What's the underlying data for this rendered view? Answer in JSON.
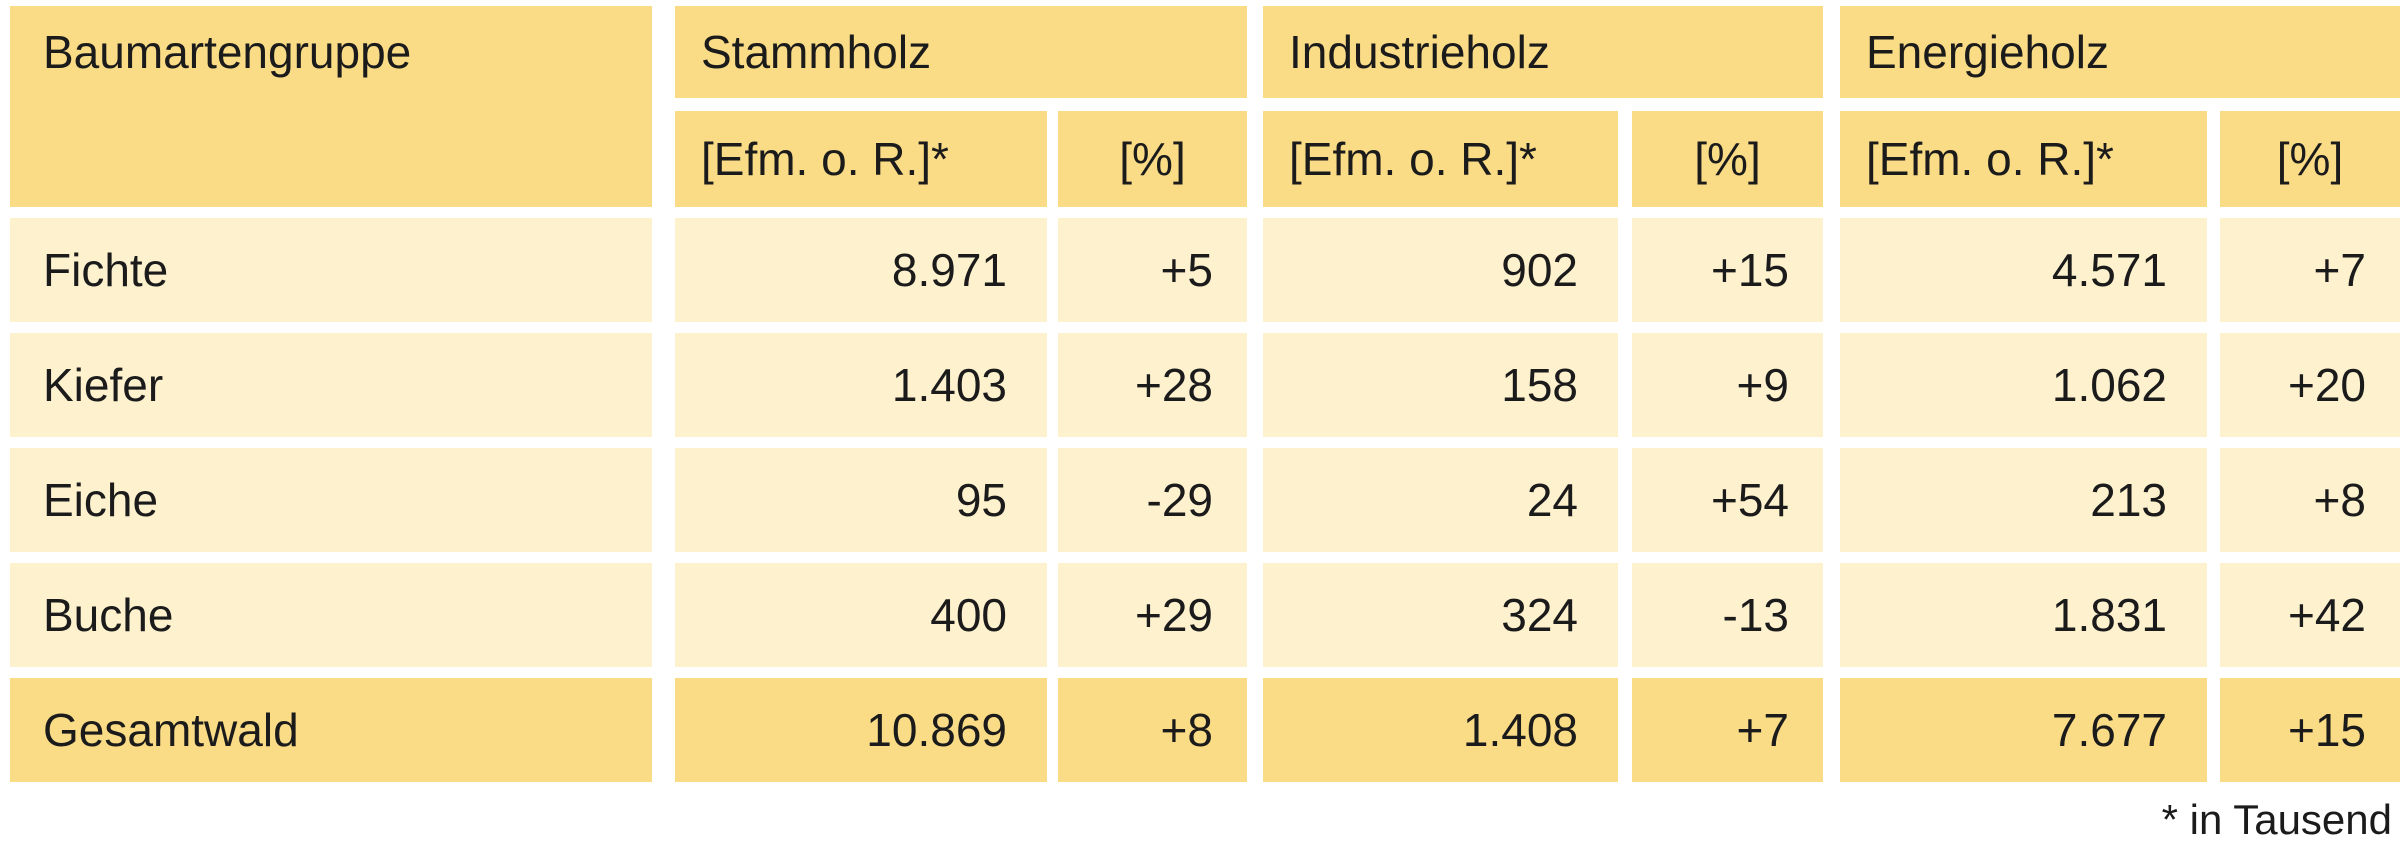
{
  "table": {
    "corner_header": "Baumartengruppe",
    "groups": [
      {
        "label": "Stammholz",
        "unit_header": "[Efm. o. R.]*",
        "pct_header": "[%]"
      },
      {
        "label": "Industrieholz",
        "unit_header": "[Efm. o. R.]*",
        "pct_header": "[%]"
      },
      {
        "label": "Energieholz",
        "unit_header": "[Efm. o. R.]*",
        "pct_header": "[%]"
      }
    ],
    "rows": [
      {
        "label": "Fichte",
        "values": [
          "8.971",
          "+5",
          "902",
          "+15",
          "4.571",
          "+7"
        ],
        "emphasis": false
      },
      {
        "label": "Kiefer",
        "values": [
          "1.403",
          "+28",
          "158",
          "+9",
          "1.062",
          "+20"
        ],
        "emphasis": false
      },
      {
        "label": "Eiche",
        "values": [
          "95",
          "-29",
          "24",
          "+54",
          "213",
          "+8"
        ],
        "emphasis": false
      },
      {
        "label": "Buche",
        "values": [
          "400",
          "+29",
          "324",
          "-13",
          "1.831",
          "+42"
        ],
        "emphasis": false
      },
      {
        "label": "Gesamtwald",
        "values": [
          "10.869",
          "+8",
          "1.408",
          "+7",
          "7.677",
          "+15"
        ],
        "emphasis": true
      }
    ],
    "footnote": "* in Tausend"
  },
  "chart_data": {
    "type": "table",
    "columns": [
      "Baumartengruppe",
      "Stammholz [Efm. o. R.]*",
      "Stammholz [%]",
      "Industrieholz [Efm. o. R.]*",
      "Industrieholz [%]",
      "Energieholz [Efm. o. R.]*",
      "Energieholz [%]"
    ],
    "rows": [
      [
        "Fichte",
        "8.971",
        "+5",
        "902",
        "+15",
        "4.571",
        "+7"
      ],
      [
        "Kiefer",
        "1.403",
        "+28",
        "158",
        "+9",
        "1.062",
        "+20"
      ],
      [
        "Eiche",
        "95",
        "-29",
        "24",
        "+54",
        "213",
        "+8"
      ],
      [
        "Buche",
        "400",
        "+29",
        "324",
        "-13",
        "1.831",
        "+42"
      ],
      [
        "Gesamtwald",
        "10.869",
        "+8",
        "1.408",
        "+7",
        "7.677",
        "+15"
      ]
    ],
    "numeric_rows_in_thousand_efm": {
      "Fichte": [
        8971,
        5,
        902,
        15,
        4571,
        7
      ],
      "Kiefer": [
        1403,
        28,
        158,
        9,
        1062,
        20
      ],
      "Eiche": [
        95,
        -29,
        24,
        54,
        213,
        8
      ],
      "Buche": [
        400,
        29,
        324,
        -13,
        1831,
        42
      ],
      "Gesamtwald": [
        10869,
        8,
        1408,
        7,
        7677,
        15
      ]
    },
    "footnote": "* in Tausend",
    "layout": {
      "grid": "off",
      "header_fill_rows": [
        "header",
        "Gesamtwald"
      ]
    }
  },
  "colors": {
    "header_fill": "#fadc86",
    "data_row_fill": "#fdf1ce",
    "total_row_fill": "#fadc86",
    "gap": "#ffffff",
    "text": "#1b1b1b",
    "background": "#ffffff"
  }
}
